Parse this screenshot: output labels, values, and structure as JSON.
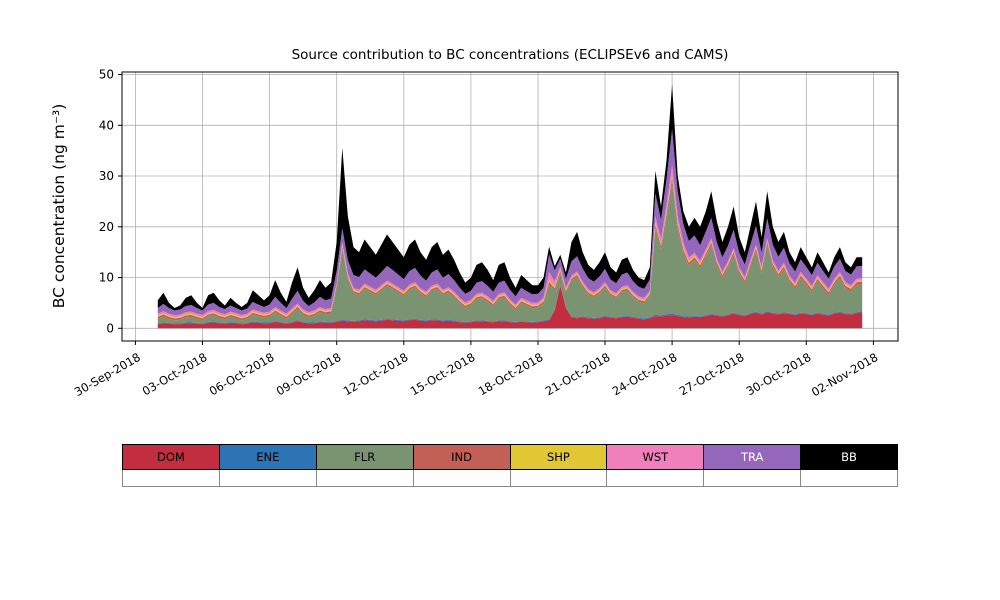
{
  "chart_data": {
    "type": "area",
    "stacked": true,
    "title": "Source contribution to BC concentrations (ECLIPSEv6 and CAMS)",
    "xlabel": "",
    "ylabel": "BC concentration (ng m⁻³)",
    "ylim": [
      -2.5,
      50.5
    ],
    "xlim_days": [
      -0.6,
      34.1
    ],
    "yticks": [
      0,
      10,
      20,
      30,
      40,
      50
    ],
    "grid": true,
    "grid_color": "#b0b0b0",
    "spine_color": "#000000",
    "legend_position": "bottom-table",
    "xticks": [
      {
        "day": 0,
        "label": "30-Sep-2018"
      },
      {
        "day": 3,
        "label": "03-Oct-2018"
      },
      {
        "day": 6,
        "label": "06-Oct-2018"
      },
      {
        "day": 9,
        "label": "09-Oct-2018"
      },
      {
        "day": 12,
        "label": "12-Oct-2018"
      },
      {
        "day": 15,
        "label": "15-Oct-2018"
      },
      {
        "day": 18,
        "label": "18-Oct-2018"
      },
      {
        "day": 21,
        "label": "21-Oct-2018"
      },
      {
        "day": 24,
        "label": "24-Oct-2018"
      },
      {
        "day": 27,
        "label": "27-Oct-2018"
      },
      {
        "day": 30,
        "label": "30-Oct-2018"
      },
      {
        "day": 33,
        "label": "02-Nov-2018"
      }
    ],
    "x_axis_origin_label": "30-Sep-2018",
    "x_start_day": 1.0,
    "x_step_days": 0.25,
    "n_points": 127,
    "series": [
      {
        "name": "DOM",
        "color": "#c22d40",
        "values": [
          0.8,
          1.0,
          0.9,
          0.8,
          0.8,
          1.0,
          1.0,
          0.9,
          0.8,
          1.1,
          1.2,
          1.0,
          0.9,
          1.1,
          1.0,
          0.8,
          0.9,
          1.2,
          1.1,
          1.0,
          1.0,
          1.3,
          1.1,
          0.9,
          1.1,
          1.4,
          1.1,
          1.0,
          1.0,
          1.2,
          1.1,
          1.1,
          1.3,
          1.5,
          1.4,
          1.3,
          1.4,
          1.6,
          1.5,
          1.4,
          1.5,
          1.7,
          1.6,
          1.5,
          1.4,
          1.6,
          1.7,
          1.5,
          1.4,
          1.6,
          1.6,
          1.4,
          1.5,
          1.4,
          1.2,
          1.1,
          1.2,
          1.4,
          1.4,
          1.3,
          1.2,
          1.4,
          1.4,
          1.2,
          1.1,
          1.3,
          1.2,
          1.1,
          1.2,
          1.4,
          1.6,
          3.5,
          8.5,
          4.0,
          2.2,
          2.0,
          2.2,
          2.0,
          1.9,
          2.0,
          2.3,
          2.1,
          2.0,
          2.2,
          2.3,
          2.1,
          1.9,
          1.8,
          2.0,
          2.4,
          2.3,
          2.5,
          2.6,
          2.4,
          2.2,
          2.1,
          2.3,
          2.2,
          2.4,
          2.7,
          2.5,
          2.3,
          2.6,
          2.9,
          2.6,
          2.4,
          2.8,
          3.1,
          2.7,
          3.2,
          2.9,
          2.7,
          3.0,
          2.8,
          2.6,
          2.9,
          2.8,
          2.6,
          2.9,
          2.7,
          2.5,
          2.9,
          3.1,
          2.8,
          2.7,
          3.0,
          3.2
        ]
      },
      {
        "name": "ENE",
        "color": "#2d74b5",
        "values": [
          0.15,
          0.15,
          0.15,
          0.15,
          0.15,
          0.15,
          0.15,
          0.15,
          0.15,
          0.15,
          0.15,
          0.15,
          0.15,
          0.15,
          0.15,
          0.15,
          0.15,
          0.15,
          0.15,
          0.15,
          0.15,
          0.15,
          0.15,
          0.15,
          0.15,
          0.15,
          0.15,
          0.15,
          0.15,
          0.15,
          0.15,
          0.15,
          0.15,
          0.15,
          0.15,
          0.15,
          0.15,
          0.15,
          0.15,
          0.15,
          0.15,
          0.15,
          0.15,
          0.15,
          0.15,
          0.15,
          0.15,
          0.15,
          0.15,
          0.15,
          0.15,
          0.15,
          0.15,
          0.15,
          0.15,
          0.15,
          0.15,
          0.15,
          0.15,
          0.15,
          0.15,
          0.15,
          0.15,
          0.15,
          0.15,
          0.15,
          0.15,
          0.15,
          0.15,
          0.15,
          0.15,
          0.15,
          0.15,
          0.15,
          0.15,
          0.15,
          0.15,
          0.15,
          0.15,
          0.15,
          0.15,
          0.15,
          0.15,
          0.15,
          0.15,
          0.15,
          0.15,
          0.15,
          0.15,
          0.25,
          0.25,
          0.25,
          0.25,
          0.25,
          0.2,
          0.2,
          0.15,
          0.15,
          0.15,
          0.15,
          0.15,
          0.15,
          0.15,
          0.15,
          0.15,
          0.15,
          0.15,
          0.15,
          0.15,
          0.15,
          0.15,
          0.15,
          0.15,
          0.15,
          0.15,
          0.15,
          0.15,
          0.15,
          0.15,
          0.15,
          0.15,
          0.15,
          0.15,
          0.15,
          0.15,
          0.15,
          0.15
        ]
      },
      {
        "name": "FLR",
        "color": "#7a9471",
        "values": [
          0.9,
          1.2,
          0.8,
          0.6,
          0.7,
          1.0,
          1.1,
          0.8,
          0.6,
          1.1,
          1.2,
          0.9,
          0.7,
          1.0,
          0.8,
          0.6,
          0.8,
          1.3,
          1.1,
          0.9,
          1.1,
          1.7,
          1.2,
          0.8,
          1.6,
          2.3,
          1.4,
          1.0,
          1.3,
          1.8,
          1.5,
          1.7,
          6.5,
          14.0,
          8.0,
          5.5,
          5.0,
          6.0,
          5.5,
          5.0,
          5.8,
          6.5,
          6.0,
          5.4,
          4.8,
          5.8,
          6.2,
          5.2,
          4.6,
          5.6,
          6.0,
          5.0,
          5.4,
          4.6,
          3.6,
          2.8,
          3.2,
          4.2,
          4.4,
          3.8,
          3.0,
          4.2,
          4.5,
          3.3,
          2.4,
          3.5,
          3.1,
          2.7,
          2.7,
          3.4,
          6.8,
          3.8,
          2.2,
          2.8,
          7.0,
          8.0,
          5.8,
          4.5,
          4.0,
          4.7,
          5.6,
          4.2,
          3.7,
          4.8,
          5.0,
          3.9,
          3.2,
          3.0,
          4.2,
          17.0,
          13.0,
          19.0,
          26.0,
          17.0,
          12.5,
          10.0,
          11.0,
          9.5,
          11.5,
          13.5,
          9.8,
          7.5,
          9.2,
          11.5,
          8.0,
          6.3,
          9.2,
          12.0,
          8.0,
          13.2,
          9.1,
          7.3,
          8.5,
          6.2,
          5.0,
          6.8,
          5.6,
          4.4,
          6.2,
          5.0,
          3.9,
          5.5,
          6.6,
          4.9,
          4.4,
          5.4,
          5.3
        ]
      },
      {
        "name": "IND",
        "color": "#c26055",
        "values": [
          0.4,
          0.4,
          0.4,
          0.4,
          0.4,
          0.4,
          0.4,
          0.4,
          0.4,
          0.4,
          0.4,
          0.4,
          0.4,
          0.4,
          0.4,
          0.4,
          0.4,
          0.4,
          0.4,
          0.4,
          0.4,
          0.4,
          0.4,
          0.4,
          0.4,
          0.4,
          0.4,
          0.4,
          0.4,
          0.4,
          0.4,
          0.4,
          0.4,
          0.5,
          0.5,
          0.4,
          0.4,
          0.4,
          0.4,
          0.4,
          0.4,
          0.4,
          0.4,
          0.4,
          0.4,
          0.4,
          0.4,
          0.4,
          0.4,
          0.4,
          0.4,
          0.4,
          0.4,
          0.4,
          0.4,
          0.4,
          0.4,
          0.4,
          0.4,
          0.4,
          0.4,
          0.4,
          0.4,
          0.4,
          0.4,
          0.4,
          0.4,
          0.4,
          0.4,
          0.4,
          0.6,
          0.5,
          0.5,
          0.4,
          0.4,
          0.4,
          0.4,
          0.4,
          0.4,
          0.4,
          0.4,
          0.4,
          0.4,
          0.4,
          0.4,
          0.4,
          0.4,
          0.4,
          0.4,
          0.8,
          0.7,
          0.8,
          0.9,
          0.8,
          0.7,
          0.6,
          0.6,
          0.6,
          0.6,
          0.6,
          0.55,
          0.55,
          0.55,
          0.55,
          0.55,
          0.55,
          0.55,
          0.55,
          0.55,
          0.55,
          0.55,
          0.55,
          0.55,
          0.55,
          0.55,
          0.55,
          0.55,
          0.55,
          0.55,
          0.55,
          0.55,
          0.55,
          0.55,
          0.55,
          0.55,
          0.55,
          0.55
        ]
      },
      {
        "name": "SHP",
        "color": "#e2c735",
        "values": [
          0.25,
          0.25,
          0.25,
          0.25,
          0.25,
          0.25,
          0.25,
          0.25,
          0.25,
          0.25,
          0.25,
          0.25,
          0.25,
          0.25,
          0.25,
          0.25,
          0.25,
          0.25,
          0.25,
          0.25,
          0.25,
          0.25,
          0.25,
          0.25,
          0.25,
          0.25,
          0.25,
          0.25,
          0.25,
          0.25,
          0.25,
          0.25,
          0.25,
          0.3,
          0.25,
          0.25,
          0.25,
          0.25,
          0.25,
          0.25,
          0.25,
          0.25,
          0.25,
          0.25,
          0.25,
          0.25,
          0.25,
          0.25,
          0.25,
          0.25,
          0.25,
          0.25,
          0.25,
          0.25,
          0.25,
          0.25,
          0.25,
          0.25,
          0.25,
          0.25,
          0.25,
          0.25,
          0.25,
          0.25,
          0.25,
          0.25,
          0.25,
          0.25,
          0.25,
          0.25,
          0.35,
          0.3,
          0.25,
          0.25,
          0.25,
          0.25,
          0.25,
          0.25,
          0.25,
          0.25,
          0.25,
          0.25,
          0.25,
          0.25,
          0.25,
          0.25,
          0.25,
          0.25,
          0.25,
          0.4,
          0.35,
          0.4,
          0.5,
          0.4,
          0.35,
          0.3,
          0.3,
          0.3,
          0.3,
          0.3,
          0.25,
          0.25,
          0.25,
          0.25,
          0.25,
          0.25,
          0.25,
          0.25,
          0.25,
          0.25,
          0.25,
          0.25,
          0.25,
          0.25,
          0.25,
          0.25,
          0.25,
          0.25,
          0.25,
          0.25,
          0.25,
          0.25,
          0.25,
          0.25,
          0.25,
          0.25,
          0.25
        ]
      },
      {
        "name": "WST",
        "color": "#f07fbb",
        "values": [
          0.4,
          0.4,
          0.4,
          0.4,
          0.4,
          0.4,
          0.4,
          0.4,
          0.4,
          0.4,
          0.4,
          0.4,
          0.4,
          0.4,
          0.4,
          0.4,
          0.4,
          0.4,
          0.4,
          0.4,
          0.4,
          0.4,
          0.4,
          0.4,
          0.4,
          0.4,
          0.4,
          0.4,
          0.4,
          0.4,
          0.4,
          0.4,
          0.4,
          0.5,
          0.5,
          0.4,
          0.4,
          0.4,
          0.4,
          0.4,
          0.4,
          0.4,
          0.4,
          0.4,
          0.4,
          0.4,
          0.4,
          0.4,
          0.4,
          0.4,
          0.4,
          0.4,
          0.4,
          0.4,
          0.4,
          0.4,
          0.4,
          0.4,
          0.4,
          0.4,
          0.4,
          0.4,
          0.4,
          0.4,
          0.4,
          0.4,
          0.4,
          0.4,
          0.4,
          0.4,
          1.6,
          1.0,
          0.5,
          0.4,
          0.4,
          0.4,
          0.4,
          0.4,
          0.4,
          0.4,
          0.4,
          0.4,
          0.4,
          0.4,
          0.4,
          0.4,
          0.4,
          0.4,
          0.4,
          1.2,
          1.0,
          1.4,
          2.0,
          1.4,
          1.0,
          0.8,
          0.55,
          0.55,
          0.55,
          0.55,
          0.45,
          0.45,
          0.45,
          0.45,
          0.45,
          0.45,
          0.45,
          0.45,
          0.45,
          0.45,
          0.45,
          0.45,
          0.45,
          0.45,
          0.45,
          0.45,
          0.45,
          0.45,
          0.45,
          0.45,
          0.45,
          0.45,
          0.45,
          0.45,
          0.45,
          0.45,
          0.45
        ]
      },
      {
        "name": "TRA",
        "color": "#9467bd",
        "values": [
          1.1,
          1.4,
          1.1,
          0.9,
          1.0,
          1.2,
          1.3,
          1.1,
          0.9,
          1.3,
          1.4,
          1.1,
          1.0,
          1.2,
          1.0,
          0.9,
          1.0,
          1.5,
          1.3,
          1.1,
          1.4,
          2.0,
          1.5,
          1.1,
          1.9,
          2.5,
          1.7,
          1.2,
          1.6,
          2.0,
          1.7,
          1.9,
          2.4,
          2.8,
          2.6,
          2.5,
          2.5,
          2.8,
          2.6,
          2.4,
          2.6,
          2.9,
          2.7,
          2.5,
          2.3,
          2.7,
          2.8,
          2.5,
          2.2,
          2.6,
          2.8,
          2.4,
          2.6,
          2.3,
          2.0,
          1.7,
          1.8,
          2.2,
          2.3,
          2.1,
          1.8,
          2.2,
          2.3,
          1.9,
          1.6,
          2.0,
          1.8,
          1.7,
          1.7,
          2.0,
          3.5,
          2.2,
          1.6,
          1.8,
          2.8,
          3.0,
          2.6,
          2.2,
          2.1,
          2.3,
          2.6,
          2.1,
          2.0,
          2.4,
          2.5,
          2.1,
          1.9,
          1.8,
          2.2,
          4.5,
          3.8,
          5.0,
          7.0,
          4.8,
          3.6,
          3.2,
          3.4,
          3.1,
          3.5,
          4.0,
          3.2,
          2.8,
          3.1,
          3.6,
          2.9,
          2.5,
          3.1,
          3.7,
          2.9,
          3.9,
          3.1,
          2.7,
          3.0,
          2.4,
          2.2,
          2.5,
          2.3,
          2.1,
          2.4,
          2.2,
          2.0,
          2.4,
          2.6,
          2.2,
          2.1,
          2.4,
          2.4
        ]
      },
      {
        "name": "BB",
        "color": "#000000",
        "values": [
          1.5,
          2.2,
          1.0,
          0.5,
          0.8,
          1.6,
          1.9,
          1.0,
          0.5,
          1.8,
          2.0,
          1.3,
          0.7,
          1.5,
          1.0,
          0.7,
          1.1,
          2.3,
          1.8,
          1.3,
          1.8,
          3.3,
          2.0,
          1.2,
          3.2,
          4.6,
          2.6,
          1.6,
          2.4,
          3.3,
          2.5,
          3.1,
          5.6,
          15.8,
          8.6,
          5.5,
          4.9,
          5.9,
          5.2,
          4.5,
          5.4,
          6.2,
          5.5,
          4.9,
          4.3,
          5.2,
          5.6,
          4.6,
          4.1,
          5.0,
          5.4,
          4.5,
          4.8,
          4.0,
          3.0,
          2.2,
          2.6,
          3.5,
          3.7,
          3.1,
          2.3,
          3.5,
          3.6,
          2.4,
          1.7,
          2.5,
          2.2,
          1.8,
          1.7,
          2.0,
          1.5,
          0.8,
          0.8,
          1.2,
          3.8,
          4.8,
          3.2,
          2.6,
          2.3,
          2.8,
          3.3,
          2.4,
          2.1,
          2.9,
          3.0,
          2.2,
          1.8,
          1.7,
          2.4,
          4.5,
          2.6,
          3.7,
          8.8,
          3.0,
          2.5,
          2.8,
          3.5,
          3.6,
          4.0,
          5.2,
          4.1,
          3.0,
          3.7,
          4.6,
          3.1,
          2.4,
          3.5,
          4.8,
          3.0,
          5.3,
          3.5,
          2.9,
          3.1,
          2.2,
          1.8,
          2.4,
          1.9,
          1.5,
          2.1,
          1.7,
          1.2,
          1.8,
          2.3,
          1.7,
          1.4,
          1.8,
          1.7
        ]
      }
    ]
  },
  "legend": {
    "items": [
      {
        "label": "DOM",
        "color": "#c22d40",
        "text_color": "#000000"
      },
      {
        "label": "ENE",
        "color": "#2d74b5",
        "text_color": "#000000"
      },
      {
        "label": "FLR",
        "color": "#7a9471",
        "text_color": "#000000"
      },
      {
        "label": "IND",
        "color": "#c26055",
        "text_color": "#000000"
      },
      {
        "label": "SHP",
        "color": "#e2c735",
        "text_color": "#000000"
      },
      {
        "label": "WST",
        "color": "#f07fbb",
        "text_color": "#000000"
      },
      {
        "label": "TRA",
        "color": "#9467bd",
        "text_color": "#ffffff"
      },
      {
        "label": "BB",
        "color": "#000000",
        "text_color": "#ffffff"
      }
    ]
  }
}
